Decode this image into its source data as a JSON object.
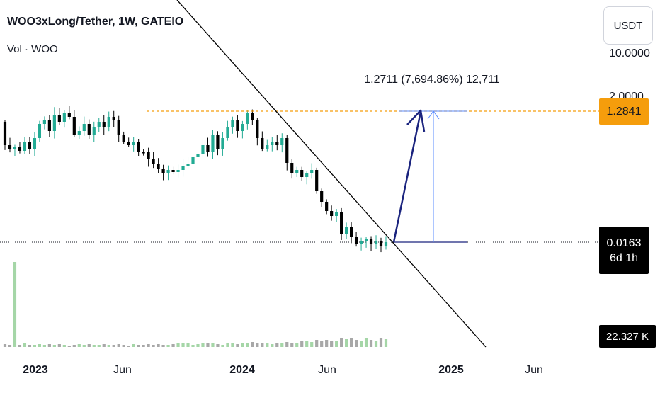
{
  "header": {
    "title": "WOO3xLong/Tether, 1W, GATEIO",
    "volume_label": "Vol · WOO"
  },
  "unit_button": "USDT",
  "price_scale": {
    "ticks": [
      "10.0000",
      "2.0000"
    ],
    "highlight_level": "1.2841",
    "current_price": "0.0163",
    "countdown": "6d 1h",
    "volume_value": "22.327 K"
  },
  "measure_label": "1.2711 (7,694.86%) 12,711",
  "colors": {
    "up": "#22ab94",
    "down": "#000000",
    "volume_up": "#a5d6a7",
    "volume_down": "#a8a8a8",
    "trendline": "#000000",
    "arrow": "#1a237e",
    "measure": "#2962ff",
    "level": "#f59d0c"
  },
  "chart_data": {
    "type": "candlestick",
    "title": "WOO3xLong/Tether, 1W, GATEIO",
    "x_axis_labels": [
      "2023",
      "Jun",
      "2024",
      "Jun",
      "2025",
      "Jun"
    ],
    "y_scale": "log",
    "y_tick_labels": [
      "10.0000",
      "2.0000"
    ],
    "resistance_level": 1.2841,
    "last_price": 0.0163,
    "candle_count": 78,
    "annotations": {
      "trendline": "descending",
      "projection_arrow": "up",
      "measure": "1.2711 (7,694.86%) 12,711"
    },
    "series": [
      {
        "type": "candlestick",
        "trend": "sideways then decline"
      },
      {
        "type": "volume",
        "last_value": "22.327 K"
      }
    ]
  }
}
